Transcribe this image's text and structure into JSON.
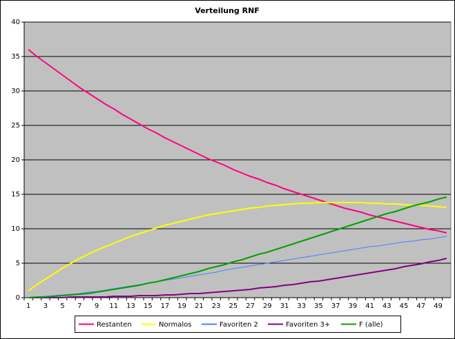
{
  "chart_data": {
    "type": "line",
    "title": "Verteilung RNF",
    "categories": [
      1,
      null,
      3,
      null,
      5,
      null,
      7,
      null,
      9,
      null,
      11,
      null,
      13,
      null,
      15,
      null,
      17,
      null,
      19,
      null,
      21,
      null,
      23,
      null,
      25,
      null,
      27,
      null,
      29,
      null,
      31,
      null,
      33,
      null,
      35,
      null,
      37,
      null,
      39,
      null,
      41,
      null,
      43,
      null,
      45,
      null,
      47,
      null,
      49,
      null
    ],
    "ylim": [
      0,
      40
    ],
    "yticks": [
      0,
      5,
      10,
      15,
      20,
      25,
      30,
      35,
      40
    ],
    "grid": true,
    "legend": "bottom",
    "series": [
      {
        "name": "Restanten",
        "color": "#ff0080",
        "values": [
          36.0,
          35.0,
          34.1,
          33.2,
          32.3,
          31.4,
          30.5,
          29.7,
          28.9,
          28.1,
          27.4,
          26.6,
          25.9,
          25.2,
          24.5,
          23.9,
          23.2,
          22.6,
          22.0,
          21.4,
          20.8,
          20.2,
          19.7,
          19.2,
          18.6,
          18.1,
          17.6,
          17.2,
          16.7,
          16.3,
          15.8,
          15.4,
          15.0,
          14.6,
          14.2,
          13.8,
          13.4,
          13.0,
          12.7,
          12.4,
          12.0,
          11.7,
          11.4,
          11.1,
          10.8,
          10.5,
          10.2,
          9.9,
          9.7,
          9.4
        ]
      },
      {
        "name": "Normalos",
        "color": "#ffff00",
        "values": [
          1.0,
          1.9,
          2.7,
          3.5,
          4.3,
          5.0,
          5.7,
          6.3,
          6.9,
          7.4,
          7.9,
          8.4,
          8.9,
          9.3,
          9.7,
          10.1,
          10.5,
          10.8,
          11.1,
          11.4,
          11.7,
          12.0,
          12.2,
          12.4,
          12.6,
          12.8,
          13.0,
          13.1,
          13.3,
          13.4,
          13.5,
          13.6,
          13.7,
          13.7,
          13.8,
          13.8,
          13.8,
          13.8,
          13.8,
          13.8,
          13.7,
          13.7,
          13.6,
          13.6,
          13.5,
          13.4,
          13.4,
          13.3,
          13.2,
          13.1
        ]
      },
      {
        "name": "Favoriten 2",
        "color": "#4a7dff",
        "values": [
          0.0,
          0.1,
          0.2,
          0.3,
          0.4,
          0.5,
          0.6,
          0.8,
          0.9,
          1.1,
          1.3,
          1.5,
          1.7,
          1.9,
          2.1,
          2.3,
          2.5,
          2.7,
          2.9,
          3.1,
          3.3,
          3.5,
          3.7,
          4.0,
          4.2,
          4.4,
          4.6,
          4.8,
          5.0,
          5.2,
          5.4,
          5.6,
          5.8,
          6.0,
          6.2,
          6.4,
          6.6,
          6.8,
          7.0,
          7.2,
          7.4,
          7.5,
          7.7,
          7.9,
          8.1,
          8.2,
          8.4,
          8.5,
          8.7,
          8.9
        ]
      },
      {
        "name": "Favoriten 3+",
        "color": "#800080",
        "values": [
          0.0,
          0.0,
          0.0,
          0.0,
          0.0,
          0.1,
          0.1,
          0.1,
          0.1,
          0.1,
          0.2,
          0.2,
          0.2,
          0.3,
          0.3,
          0.3,
          0.4,
          0.4,
          0.5,
          0.6,
          0.6,
          0.7,
          0.8,
          0.9,
          1.0,
          1.1,
          1.2,
          1.4,
          1.5,
          1.6,
          1.8,
          1.9,
          2.1,
          2.3,
          2.4,
          2.6,
          2.8,
          3.0,
          3.2,
          3.4,
          3.6,
          3.8,
          4.0,
          4.2,
          4.5,
          4.7,
          4.9,
          5.2,
          5.4,
          5.7
        ]
      },
      {
        "name": "F (alle)",
        "color": "#00a000",
        "values": [
          0.0,
          0.1,
          0.1,
          0.2,
          0.3,
          0.4,
          0.5,
          0.6,
          0.8,
          1.0,
          1.2,
          1.4,
          1.6,
          1.8,
          2.1,
          2.3,
          2.6,
          2.9,
          3.2,
          3.5,
          3.8,
          4.2,
          4.5,
          4.8,
          5.2,
          5.5,
          5.9,
          6.3,
          6.6,
          7.0,
          7.4,
          7.8,
          8.2,
          8.6,
          9.0,
          9.4,
          9.8,
          10.2,
          10.6,
          11.0,
          11.4,
          11.8,
          12.2,
          12.5,
          12.9,
          13.3,
          13.6,
          13.9,
          14.3,
          14.6
        ]
      }
    ]
  }
}
